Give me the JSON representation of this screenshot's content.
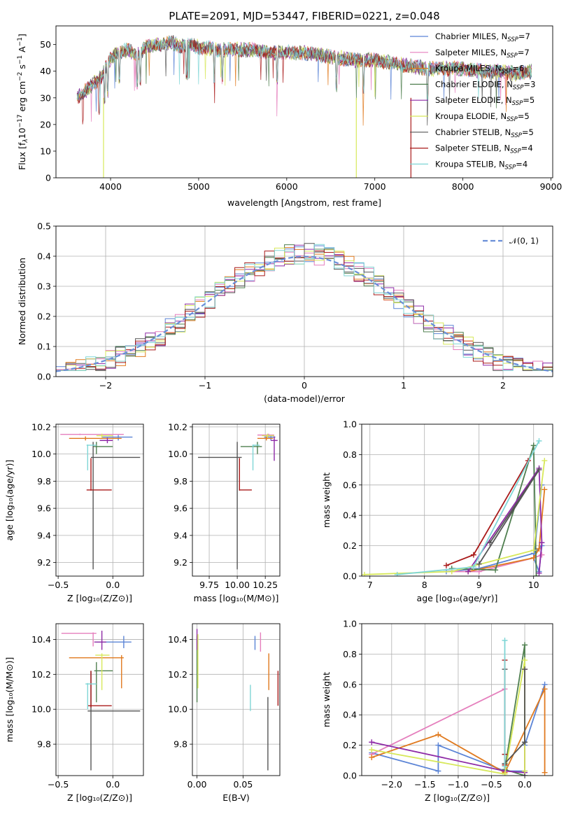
{
  "figure_title": "PLATE=2091, MJD=53447, FIBERID=0221, z=0.048",
  "colors": {
    "c1": "#5b84d6",
    "c2": "#e57fbd",
    "c3": "#e07a1f",
    "c4": "#4f7f4f",
    "c5": "#8e2aa6",
    "c6": "#d7e85a",
    "c7": "#555555",
    "c8": "#a91a1a",
    "c9": "#7fd6d6",
    "gauss": "#6a8fd8"
  },
  "chart_data": [
    {
      "id": "spectrum",
      "type": "line",
      "title": "PLATE=2091, MJD=53447, FIBERID=0221, z=0.048",
      "xlabel": "wavelength [Angstrom, rest frame]",
      "ylabel_parts": [
        "Flux [f",
        "λ",
        "10",
        "−17",
        " erg cm",
        "−2",
        " s",
        "−1",
        " A",
        "−1",
        "]"
      ],
      "xlim": [
        3380,
        9020
      ],
      "ylim": [
        0,
        57
      ],
      "xticks": [
        4000,
        5000,
        6000,
        7000,
        8000,
        9000
      ],
      "yticks": [
        0,
        10,
        20,
        30,
        40,
        50
      ],
      "grid": false,
      "legend_position": "top-right",
      "series": [
        {
          "name": "Chabrier MILES",
          "nssp": "7"
        },
        {
          "name": "Salpeter MILES",
          "nssp": "7"
        },
        {
          "name": "Kroupa MILES",
          "nssp": "6"
        },
        {
          "name": "Chabrier ELODIE",
          "nssp": "3"
        },
        {
          "name": "Salpeter ELODIE",
          "nssp": "5"
        },
        {
          "name": "Kroupa ELODIE",
          "nssp": "5"
        },
        {
          "name": "Chabrier STELIB",
          "nssp": "5"
        },
        {
          "name": "Salpeter STELIB",
          "nssp": "4"
        },
        {
          "name": "Kroupa STELIB",
          "nssp": "4"
        }
      ],
      "nssp_label": "N",
      "nssp_sub": "SSP",
      "continuum": {
        "x": [
          3600,
          3700,
          3800,
          3900,
          4000,
          4100,
          4200,
          4300,
          4400,
          4500,
          4600,
          4700,
          4800,
          4900,
          5000,
          5200,
          5400,
          5600,
          5800,
          6000,
          6200,
          6400,
          6600,
          6800,
          7000,
          7200,
          7400,
          7600,
          7800,
          8000,
          8200,
          8400,
          8600,
          8800
        ],
        "y": [
          30,
          32,
          35,
          38,
          45,
          47,
          48,
          46,
          49,
          50,
          50,
          51,
          49,
          50,
          49,
          48,
          48,
          48,
          47,
          47,
          47,
          46,
          45,
          44,
          44,
          43,
          42,
          41,
          41,
          41,
          40,
          40,
          39,
          40
        ]
      }
    },
    {
      "id": "residuals",
      "type": "line",
      "xlabel": "(data-model)/error",
      "ylabel": "Normed distribution",
      "xlim": [
        -2.5,
        2.5
      ],
      "ylim": [
        0,
        0.5
      ],
      "xticks": [
        -2,
        -1,
        0,
        1,
        2
      ],
      "yticks": [
        0.0,
        0.1,
        0.2,
        0.3,
        0.4,
        0.5
      ],
      "grid": true,
      "legend_position": "top-right",
      "gaussian_label": "𝒩(0, 1)",
      "bin_width": 0.1
    },
    {
      "id": "age_vs_Z",
      "type": "scatter",
      "xlabel": "Z [log₁₀(Z/Z⊙)]",
      "ylabel": "age  [log₁₀(age/yr)]",
      "xlim": [
        -0.52,
        0.28
      ],
      "ylim": [
        9.1,
        10.22
      ],
      "xticks": [
        -0.5,
        0.0
      ],
      "yticks": [
        9.2,
        9.4,
        9.6,
        9.8,
        10.0,
        10.2
      ],
      "grid": true,
      "points": [
        {
          "c": "c1",
          "x": 0.05,
          "y": 10.125,
          "xlo": -0.1,
          "xhi": 0.18,
          "ylo": 10.1,
          "yhi": 10.14
        },
        {
          "c": "c2",
          "x": -0.3,
          "y": 10.145,
          "xlo": -0.48,
          "xhi": 0.1,
          "ylo": 10.14,
          "yhi": 10.15
        },
        {
          "c": "c3",
          "x": -0.25,
          "y": 10.115,
          "xlo": -0.4,
          "xhi": 0.08,
          "ylo": 10.1,
          "yhi": 10.13
        },
        {
          "c": "c4",
          "x": -0.15,
          "y": 10.055,
          "xlo": -0.18,
          "xhi": 0.0,
          "ylo": 10.0,
          "yhi": 10.09
        },
        {
          "c": "c5",
          "x": -0.05,
          "y": 10.1,
          "xlo": -0.12,
          "xhi": 0.0,
          "ylo": 10.08,
          "yhi": 10.12
        },
        {
          "c": "c6",
          "x": -0.1,
          "y": 10.135,
          "xlo": -0.15,
          "xhi": 0.0,
          "ylo": 10.12,
          "yhi": 10.15
        },
        {
          "c": "c7",
          "x": -0.18,
          "y": 9.975,
          "xlo": -0.2,
          "xhi": 0.25,
          "ylo": 9.15,
          "yhi": 10.09
        },
        {
          "c": "c8",
          "x": -0.2,
          "y": 9.735,
          "xlo": -0.24,
          "xhi": -0.01,
          "ylo": 9.73,
          "yhi": 9.97
        },
        {
          "c": "c9",
          "x": -0.23,
          "y": 10.065,
          "xlo": -0.24,
          "xhi": -0.15,
          "ylo": 9.88,
          "yhi": 10.07
        }
      ]
    },
    {
      "id": "age_vs_mass",
      "type": "scatter",
      "xlabel": "mass [log₁₀(M/M⊙)]",
      "xlim": [
        9.6,
        10.38
      ],
      "ylim": [
        9.1,
        10.22
      ],
      "xticks": [
        9.75,
        10.0,
        10.25
      ],
      "yticks": [
        9.2,
        9.4,
        9.6,
        9.8,
        10.0,
        10.2
      ],
      "grid": true,
      "points": [
        {
          "c": "c1",
          "x": 10.3,
          "y": 10.125,
          "xlo": 10.24,
          "xhi": 10.34,
          "ylo": 10.1,
          "yhi": 10.14
        },
        {
          "c": "c2",
          "x": 10.28,
          "y": 10.14,
          "xlo": 10.18,
          "xhi": 10.33,
          "ylo": 10.13,
          "yhi": 10.15
        },
        {
          "c": "c3",
          "x": 10.26,
          "y": 10.115,
          "xlo": 10.18,
          "xhi": 10.32,
          "ylo": 10.1,
          "yhi": 10.13
        },
        {
          "c": "c4",
          "x": 10.18,
          "y": 10.055,
          "xlo": 10.03,
          "xhi": 10.22,
          "ylo": 10.0,
          "yhi": 10.09
        },
        {
          "c": "c5",
          "x": 10.33,
          "y": 10.1,
          "xlo": 10.3,
          "xhi": 10.36,
          "ylo": 9.95,
          "yhi": 10.13
        },
        {
          "c": "c6",
          "x": 10.27,
          "y": 10.135,
          "xlo": 10.22,
          "xhi": 10.33,
          "ylo": 10.12,
          "yhi": 10.15
        },
        {
          "c": "c7",
          "x": 10.0,
          "y": 9.975,
          "xlo": 9.65,
          "xhi": 10.04,
          "ylo": 9.15,
          "yhi": 10.09
        },
        {
          "c": "c8",
          "x": 10.02,
          "y": 9.735,
          "xlo": 10.02,
          "xhi": 10.13,
          "ylo": 9.73,
          "yhi": 9.97
        },
        {
          "c": "c9",
          "x": 10.14,
          "y": 10.065,
          "xlo": 10.14,
          "xhi": 10.2,
          "ylo": 9.88,
          "yhi": 10.07
        }
      ]
    },
    {
      "id": "weight_vs_age",
      "type": "line",
      "xlabel": "age  [log₁₀(age/yr)]",
      "ylabel": "mass weight",
      "xlim": [
        6.85,
        10.35
      ],
      "ylim": [
        0,
        1.0
      ],
      "xticks": [
        7,
        8,
        9,
        10
      ],
      "yticks": [
        0.0,
        0.2,
        0.4,
        0.6,
        0.8,
        1.0
      ],
      "grid": true,
      "series": [
        {
          "c": "c1",
          "x": [
            8.4,
            9.0,
            10.0,
            10.15,
            10.1,
            10.0,
            10.15
          ],
          "y": [
            0.03,
            0.05,
            0.15,
            0.2,
            0.03,
            0.12,
            0.6
          ]
        },
        {
          "c": "c2",
          "x": [
            8.5,
            9.0,
            10.0,
            10.15
          ],
          "y": [
            0.03,
            0.03,
            0.12,
            0.14
          ]
        },
        {
          "c": "c3",
          "x": [
            8.8,
            10.0,
            10.1,
            10.2
          ],
          "y": [
            0.03,
            0.12,
            0.18,
            0.57
          ]
        },
        {
          "c": "c4",
          "x": [
            8.5,
            9.3,
            10.0,
            10.05
          ],
          "y": [
            0.05,
            0.04,
            0.86,
            0.0
          ]
        },
        {
          "c": "c5",
          "x": [
            8.8,
            10.1,
            10.15,
            10.1
          ],
          "y": [
            0.03,
            0.71,
            0.22,
            0.02
          ]
        },
        {
          "c": "c6",
          "x": [
            6.9,
            8.5,
            10.0,
            10.2
          ],
          "y": [
            0.01,
            0.03,
            0.17,
            0.76
          ]
        },
        {
          "c": "c7",
          "x": [
            9.2,
            10.1,
            9.0
          ],
          "y": [
            0.22,
            0.7,
            0.08
          ]
        },
        {
          "c": "c8",
          "x": [
            8.4,
            8.9,
            9.9
          ],
          "y": [
            0.07,
            0.14,
            0.76
          ]
        },
        {
          "c": "c9",
          "x": [
            7.5,
            8.9,
            10.1
          ],
          "y": [
            0.01,
            0.06,
            0.89
          ]
        }
      ]
    },
    {
      "id": "mass_vs_Z",
      "type": "scatter",
      "xlabel": "Z [log₁₀(Z/Z⊙)]",
      "ylabel": "mass [log₁₀(M/M⊙)]",
      "xlim": [
        -0.52,
        0.28
      ],
      "ylim": [
        9.62,
        10.49
      ],
      "xticks": [
        -0.5,
        0.0
      ],
      "yticks": [
        9.8,
        10.0,
        10.2,
        10.4
      ],
      "grid": true,
      "points": [
        {
          "c": "c1",
          "x": 0.1,
          "y": 10.385,
          "xlo": -0.15,
          "xhi": 0.17,
          "ylo": 10.35,
          "yhi": 10.42
        },
        {
          "c": "c2",
          "x": -0.18,
          "y": 10.435,
          "xlo": -0.47,
          "xhi": -0.15,
          "ylo": 10.36,
          "yhi": 10.44
        },
        {
          "c": "c3",
          "x": 0.08,
          "y": 10.295,
          "xlo": -0.4,
          "xhi": 0.1,
          "ylo": 10.12,
          "yhi": 10.31
        },
        {
          "c": "c4",
          "x": -0.15,
          "y": 10.22,
          "xlo": -0.17,
          "xhi": 0.0,
          "ylo": 10.04,
          "yhi": 10.27
        },
        {
          "c": "c5",
          "x": -0.1,
          "y": 10.385,
          "xlo": -0.17,
          "xhi": -0.06,
          "ylo": 10.34,
          "yhi": 10.45
        },
        {
          "c": "c6",
          "x": -0.1,
          "y": 10.31,
          "xlo": -0.16,
          "xhi": -0.03,
          "ylo": 10.11,
          "yhi": 10.32
        },
        {
          "c": "c7",
          "x": -0.2,
          "y": 9.99,
          "xlo": -0.23,
          "xhi": 0.25,
          "ylo": 9.65,
          "yhi": 10.22
        },
        {
          "c": "c8",
          "x": -0.2,
          "y": 10.02,
          "xlo": -0.23,
          "xhi": -0.01,
          "ylo": 10.01,
          "yhi": 10.22
        },
        {
          "c": "c9",
          "x": -0.23,
          "y": 10.145,
          "xlo": -0.25,
          "xhi": -0.15,
          "ylo": 10.0,
          "yhi": 10.15
        }
      ]
    },
    {
      "id": "mass_vs_ebv",
      "type": "scatter",
      "xlabel": "E(B-V)",
      "xlim": [
        -0.005,
        0.09
      ],
      "ylim": [
        9.62,
        10.49
      ],
      "xticks": [
        0.0,
        0.05
      ],
      "yticks": [
        9.8,
        10.0,
        10.2,
        10.4
      ],
      "grid": true,
      "points": [
        {
          "c": "c1",
          "x": 0.063,
          "y": 10.38,
          "ylo": 10.34,
          "yhi": 10.42
        },
        {
          "c": "c2",
          "x": 0.069,
          "y": 10.39,
          "ylo": 10.33,
          "yhi": 10.44
        },
        {
          "c": "c3",
          "x": 0.078,
          "y": 10.2,
          "ylo": 10.11,
          "yhi": 10.32
        },
        {
          "c": "c4",
          "x": 0.0,
          "y": 10.2,
          "ylo": 10.04,
          "yhi": 10.42
        },
        {
          "c": "c5",
          "x": 0.0,
          "y": 10.41,
          "ylo": 10.34,
          "yhi": 10.46
        },
        {
          "c": "c6",
          "x": 0.001,
          "y": 10.28,
          "ylo": 10.12,
          "yhi": 10.43
        },
        {
          "c": "c7",
          "x": 0.077,
          "y": 9.88,
          "ylo": 9.65,
          "yhi": 10.07
        },
        {
          "c": "c8",
          "x": 0.088,
          "y": 10.11,
          "ylo": 10.02,
          "yhi": 10.22
        },
        {
          "c": "c9",
          "x": 0.058,
          "y": 10.06,
          "ylo": 9.99,
          "yhi": 10.14
        }
      ]
    },
    {
      "id": "weight_vs_Z",
      "type": "line",
      "xlabel": "Z [log₁₀(Z/Z⊙)]",
      "ylabel": "mass weight",
      "xlim": [
        -2.45,
        0.42
      ],
      "ylim": [
        0,
        1.0
      ],
      "xticks": [
        -2.0,
        -1.5,
        -1.0,
        -0.5,
        0.0
      ],
      "yticks": [
        0.0,
        0.2,
        0.4,
        0.6,
        0.8,
        1.0
      ],
      "grid": true,
      "series": [
        {
          "c": "c1",
          "x": [
            -2.3,
            -1.3,
            -1.3,
            -0.3,
            0.0,
            0.0,
            0.3
          ],
          "y": [
            0.15,
            0.03,
            0.2,
            0.03,
            0.03,
            0.2,
            0.6
          ]
        },
        {
          "c": "c2",
          "x": [
            -2.3,
            -0.3,
            -0.3
          ],
          "y": [
            0.14,
            0.57,
            0.03
          ]
        },
        {
          "c": "c3",
          "x": [
            -2.3,
            -1.3,
            -0.3,
            0.3,
            0.3
          ],
          "y": [
            0.12,
            0.27,
            0.02,
            0.57,
            0.02
          ]
        },
        {
          "c": "c4",
          "x": [
            -0.3,
            0.0,
            0.0,
            -0.3
          ],
          "y": [
            0.04,
            0.86,
            0.0,
            0.04
          ]
        },
        {
          "c": "c5",
          "x": [
            -2.3,
            -0.3,
            0.0,
            0.0
          ],
          "y": [
            0.22,
            0.03,
            0.02,
            0.7
          ]
        },
        {
          "c": "c6",
          "x": [
            -2.3,
            -0.3,
            0.0,
            0.0
          ],
          "y": [
            0.17,
            0.01,
            0.76,
            0.03
          ]
        },
        {
          "c": "c7",
          "x": [
            -0.3,
            -0.3,
            0.0,
            0.0
          ],
          "y": [
            0.7,
            0.08,
            0.22,
            0.7
          ]
        },
        {
          "c": "c8",
          "x": [
            -0.3,
            -0.3,
            -0.3
          ],
          "y": [
            0.76,
            0.14,
            0.07
          ]
        },
        {
          "c": "c9",
          "x": [
            -0.3,
            -0.3
          ],
          "y": [
            0.89,
            0.06
          ]
        }
      ]
    }
  ]
}
